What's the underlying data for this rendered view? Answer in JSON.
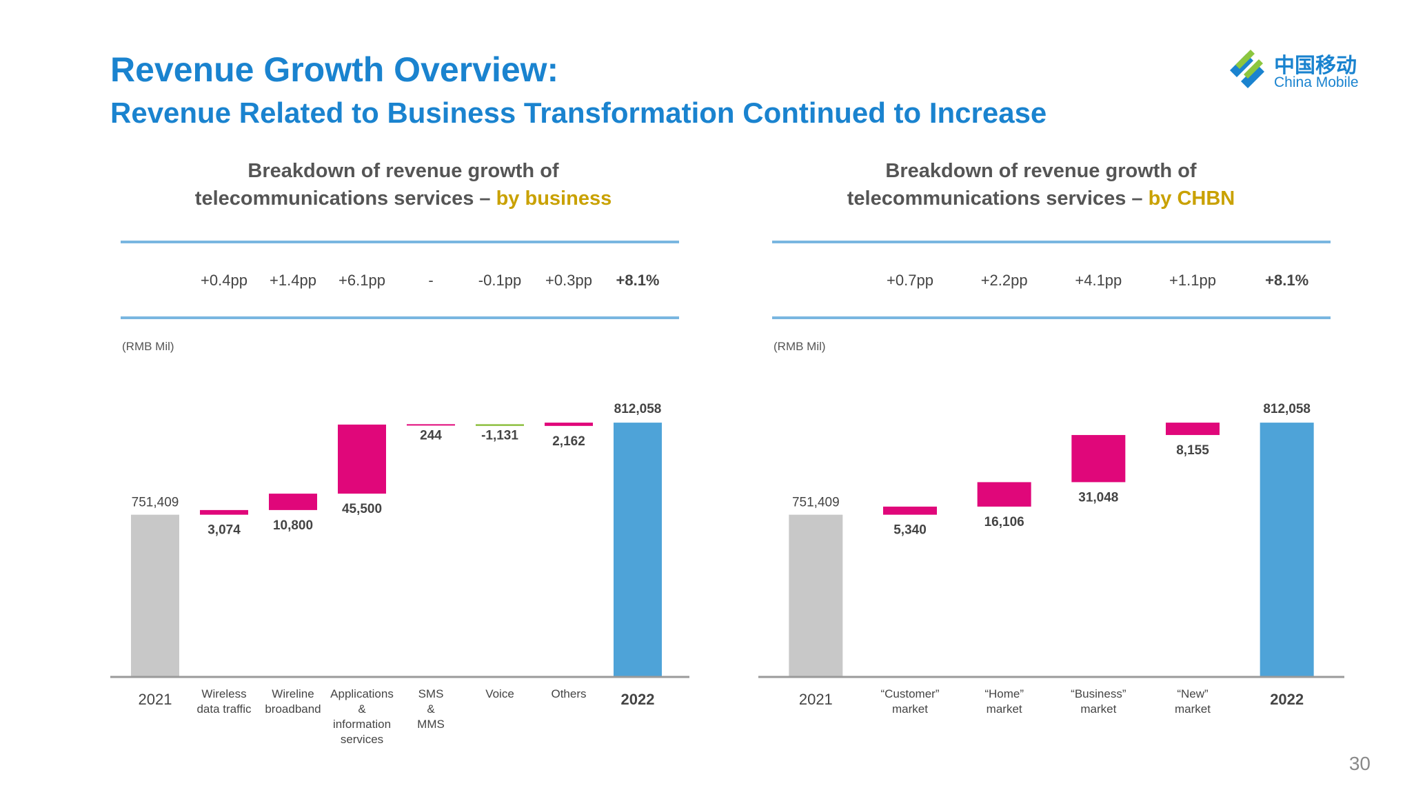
{
  "header": {
    "title": "Revenue Growth Overview:",
    "subtitle": "Revenue Related to Business Transformation Continued to Increase"
  },
  "logo": {
    "chinese": "中国移动",
    "english": "China Mobile"
  },
  "page_number": "30",
  "colors": {
    "accent": "#1a83cf",
    "highlight": "#c9a100",
    "increase": "#e0077a",
    "decrease": "#8cbf3f",
    "base_bar": "#c8c8c8",
    "total_bar": "#4ea3d8"
  },
  "chart_data": [
    {
      "type": "bar",
      "subtype": "waterfall",
      "title_main": "Breakdown of revenue growth of",
      "title_line2": "telecommunications services – ",
      "title_highlight": "by business",
      "unit": "(RMB Mil)",
      "categories": [
        "2021",
        "Wireless\ndata traffic",
        "Wireline\nbroadband",
        "Applications\n&\ninformation\nservices",
        "SMS\n&\nMMS",
        "Voice",
        "Others",
        "2022"
      ],
      "values": [
        751409,
        3074,
        10800,
        45500,
        244,
        -1131,
        2162,
        812058
      ],
      "value_labels": [
        "751,409",
        "3,074",
        "10,800",
        "45,500",
        "244",
        "-1,131",
        "2,162",
        "812,058"
      ],
      "bar_kinds": [
        "base",
        "delta",
        "delta",
        "delta",
        "delta",
        "delta",
        "delta",
        "total"
      ],
      "contribution": [
        "",
        "+0.4pp",
        "+1.4pp",
        "+6.1pp",
        "-",
        "-0.1pp",
        "+0.3pp",
        "+8.1%"
      ],
      "ylim": [
        0,
        820000
      ]
    },
    {
      "type": "bar",
      "subtype": "waterfall",
      "title_main": "Breakdown of revenue growth of",
      "title_line2": "telecommunications services – ",
      "title_highlight": "by CHBN",
      "unit": "(RMB Mil)",
      "categories": [
        "2021",
        "“Customer”\nmarket",
        "“Home”\nmarket",
        "“Business”\nmarket",
        "“New”\nmarket",
        "2022"
      ],
      "values": [
        751409,
        5340,
        16106,
        31048,
        8155,
        812058
      ],
      "value_labels": [
        "751,409",
        "5,340",
        "16,106",
        "31,048",
        "8,155",
        "812,058"
      ],
      "bar_kinds": [
        "base",
        "delta",
        "delta",
        "delta",
        "delta",
        "total"
      ],
      "contribution": [
        "",
        "+0.7pp",
        "+2.2pp",
        "+4.1pp",
        "+1.1pp",
        "+8.1%"
      ],
      "ylim": [
        0,
        820000
      ]
    }
  ]
}
